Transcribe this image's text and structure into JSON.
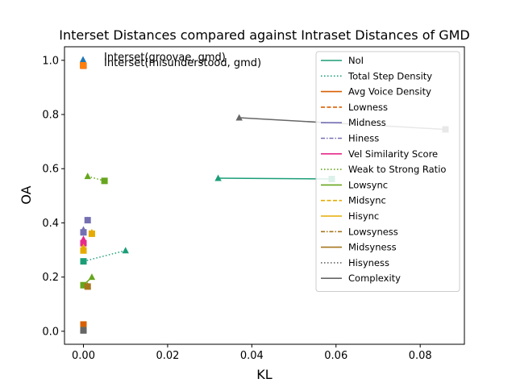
{
  "chart_data": {
    "type": "scatter",
    "title": "Interset Distances compared against Intraset Distances of GMD",
    "xlabel": "KL",
    "ylabel": "OA",
    "xlim": [
      -0.0045,
      0.0905
    ],
    "ylim": [
      -0.048,
      1.05
    ],
    "xticks": [
      0.0,
      0.02,
      0.04,
      0.06,
      0.08
    ],
    "xtick_labels": [
      "0.00",
      "0.02",
      "0.04",
      "0.06",
      "0.08"
    ],
    "yticks": [
      0.0,
      0.2,
      0.4,
      0.6,
      0.8,
      1.0
    ],
    "ytick_labels": [
      "0.0",
      "0.2",
      "0.4",
      "0.6",
      "0.8",
      "1.0"
    ],
    "grid": false,
    "legend_position": "top-right",
    "marker_legend": [
      {
        "label": "Interset(groovae, gmd)",
        "marker": "triangle"
      },
      {
        "label": "Interset(misunderstood, gmd)",
        "marker": "square"
      }
    ],
    "series": [
      {
        "name": "NoI",
        "color": "#1b9e77",
        "dash": "solid",
        "groovae": [
          0.032,
          0.565
        ],
        "misunderstood": [
          0.059,
          0.562
        ]
      },
      {
        "name": "Total Step Density",
        "color": "#1b9e77",
        "dash": "dotted",
        "groovae": [
          0.01,
          0.298
        ],
        "misunderstood": [
          0.0,
          0.258
        ]
      },
      {
        "name": "Avg Voice Density",
        "color": "#d95f02",
        "dash": "solid",
        "groovae": [
          0.0,
          0.012
        ],
        "misunderstood": [
          0.0,
          0.025
        ]
      },
      {
        "name": "Lowness",
        "color": "#d95f02",
        "dash": "dashed",
        "groovae": [
          0.0,
          0.985
        ],
        "misunderstood": [
          0.0,
          0.98
        ]
      },
      {
        "name": "Midness",
        "color": "#7570b3",
        "dash": "solid",
        "groovae": [
          0.001,
          0.41
        ],
        "misunderstood": [
          0.001,
          0.41
        ]
      },
      {
        "name": "Hiness",
        "color": "#7570b3",
        "dash": "dashdot",
        "groovae": [
          0.0,
          0.375
        ],
        "misunderstood": [
          0.0,
          0.365
        ]
      },
      {
        "name": "Vel Similarity Score",
        "color": "#e7298a",
        "dash": "solid",
        "groovae": [
          0.0,
          0.34
        ],
        "misunderstood": [
          0.0,
          0.325
        ]
      },
      {
        "name": "Weak to Strong Ratio",
        "color": "#66a61e",
        "dash": "dotted",
        "groovae": [
          0.001,
          0.572
        ],
        "misunderstood": [
          0.005,
          0.555
        ]
      },
      {
        "name": "Lowsync",
        "color": "#66a61e",
        "dash": "solid",
        "groovae": [
          0.002,
          0.2
        ],
        "misunderstood": [
          0.0,
          0.17
        ]
      },
      {
        "name": "Midsync",
        "color": "#e6ab02",
        "dash": "dashed",
        "groovae": [
          0.0,
          0.31
        ],
        "misunderstood": [
          0.0,
          0.298
        ]
      },
      {
        "name": "Hisync",
        "color": "#e6ab02",
        "dash": "solid",
        "groovae": [
          0.002,
          0.365
        ],
        "misunderstood": [
          0.002,
          0.36
        ]
      },
      {
        "name": "Lowsyness",
        "color": "#a6761d",
        "dash": "dashdot",
        "groovae": [
          0.001,
          0.168
        ],
        "misunderstood": [
          0.001,
          0.165
        ]
      },
      {
        "name": "Midsyness",
        "color": "#a6761d",
        "dash": "solid",
        "groovae": [
          0.0,
          0.008
        ],
        "misunderstood": [
          0.0,
          0.005
        ]
      },
      {
        "name": "Hisyness",
        "color": "#666666",
        "dash": "dotted",
        "groovae": [
          0.0,
          0.005
        ],
        "misunderstood": [
          0.0,
          0.003
        ]
      },
      {
        "name": "Complexity",
        "color": "#666666",
        "dash": "solid",
        "groovae": [
          0.037,
          0.788
        ],
        "misunderstood": [
          0.086,
          0.745
        ]
      }
    ]
  }
}
